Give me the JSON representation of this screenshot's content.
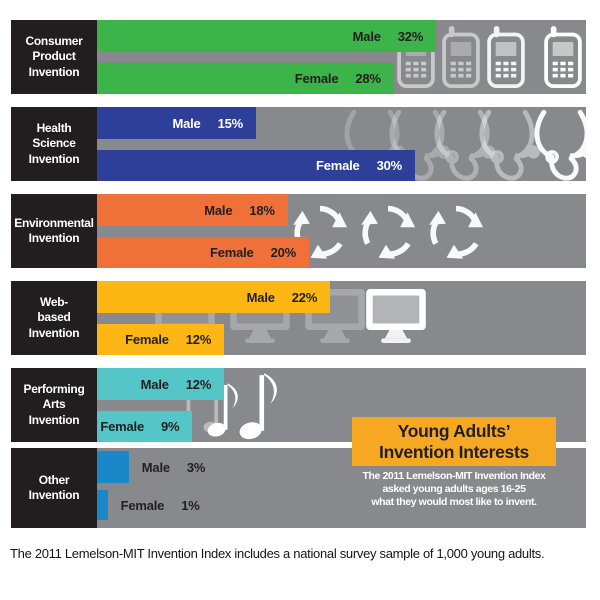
{
  "palette": {
    "band_gray": "#87898c",
    "category_box_black": "#221e1f",
    "title_box_orange": "#f7a823",
    "bar_green": "#3cb44a",
    "bar_blue": "#2e3f99",
    "bar_orange": "#f0703a",
    "bar_amber": "#fdb714",
    "bar_teal": "#55c6c8",
    "bar_azure": "#1987c8"
  },
  "title_box": {
    "bg": "#f7a823",
    "title_line1": "Young Adults’",
    "title_line2": "Invention Interests",
    "subtitle_line1": "The 2011 Lemelson-MIT Invention Index",
    "subtitle_line2": "asked young adults ages 16-25",
    "subtitle_line3": "what they would most like to invent."
  },
  "footer": {
    "caption": "The 2011 Lemelson-MIT Invention Index includes a national survey sample of 1,000 young adults."
  },
  "rows": [
    {
      "label_lines": [
        "Consumer",
        "Product",
        "Invention"
      ],
      "icon": "cellphone-icon",
      "color": "#3cb44a",
      "label_color": "#231f20",
      "labels_outside": false,
      "male_label": "Male",
      "male_pct": 32,
      "male_value": "32%",
      "female_label": "Female",
      "female_pct": 28,
      "female_value": "28%"
    },
    {
      "label_lines": [
        "Health",
        "Science",
        "Invention"
      ],
      "icon": "stethoscope-icon",
      "color": "#2e3f99",
      "label_color": "#ffffff",
      "labels_outside": false,
      "male_label": "Male",
      "male_pct": 15,
      "male_value": "15%",
      "female_label": "Female",
      "female_pct": 30,
      "female_value": "30%"
    },
    {
      "label_lines": [
        "Environmental",
        "Invention"
      ],
      "icon": "recycle-icon",
      "color": "#f0703a",
      "label_color": "#231f20",
      "labels_outside": false,
      "male_label": "Male",
      "male_pct": 18,
      "male_value": "18%",
      "female_label": "Female",
      "female_pct": 20,
      "female_value": "20%"
    },
    {
      "label_lines": [
        "Web-",
        "based",
        "Invention"
      ],
      "icon": "monitor-icon",
      "color": "#fdb714",
      "label_color": "#231f20",
      "labels_outside": false,
      "male_label": "Male",
      "male_pct": 22,
      "male_value": "22%",
      "female_label": "Female",
      "female_pct": 12,
      "female_value": "12%"
    },
    {
      "label_lines": [
        "Performing",
        "Arts",
        "Invention"
      ],
      "icon": "music-note-icon",
      "color": "#55c6c8",
      "label_color": "#231f20",
      "labels_outside": false,
      "male_label": "Male",
      "male_pct": 12,
      "male_value": "12%",
      "female_label": "Female",
      "female_pct": 9,
      "female_value": "9%"
    },
    {
      "label_lines": [
        "Other",
        "Invention"
      ],
      "icon": "none",
      "color": "#1987c8",
      "label_color": "#231f20",
      "labels_outside": true,
      "male_label": "Male",
      "male_pct": 3,
      "male_value": "3%",
      "female_label": "Female",
      "female_pct": 1,
      "female_value": "1%"
    }
  ],
  "chart_data": {
    "type": "bar",
    "orientation": "horizontal",
    "title": "Young Adults’ Invention Interests",
    "subtitle": "The 2011 Lemelson-MIT Invention Index asked young adults ages 16-25 what they would most like to invent.",
    "categories": [
      "Consumer Product Invention",
      "Health Science Invention",
      "Environmental Invention",
      "Web-based Invention",
      "Performing Arts Invention",
      "Other Invention"
    ],
    "series": [
      {
        "name": "Male",
        "values": [
          32,
          15,
          18,
          22,
          12,
          3
        ]
      },
      {
        "name": "Female",
        "values": [
          28,
          30,
          20,
          12,
          9,
          1
        ]
      }
    ],
    "unit": "%",
    "value_labels": true,
    "xlim": [
      0,
      46
    ],
    "grid": false,
    "legend_position": "none",
    "bar_colors_by_category": [
      "#3cb44a",
      "#2e3f99",
      "#f0703a",
      "#fdb714",
      "#55c6c8",
      "#1987c8"
    ],
    "footnote": "The 2011 Lemelson-MIT Invention Index includes a national survey sample of 1,000 young adults."
  }
}
